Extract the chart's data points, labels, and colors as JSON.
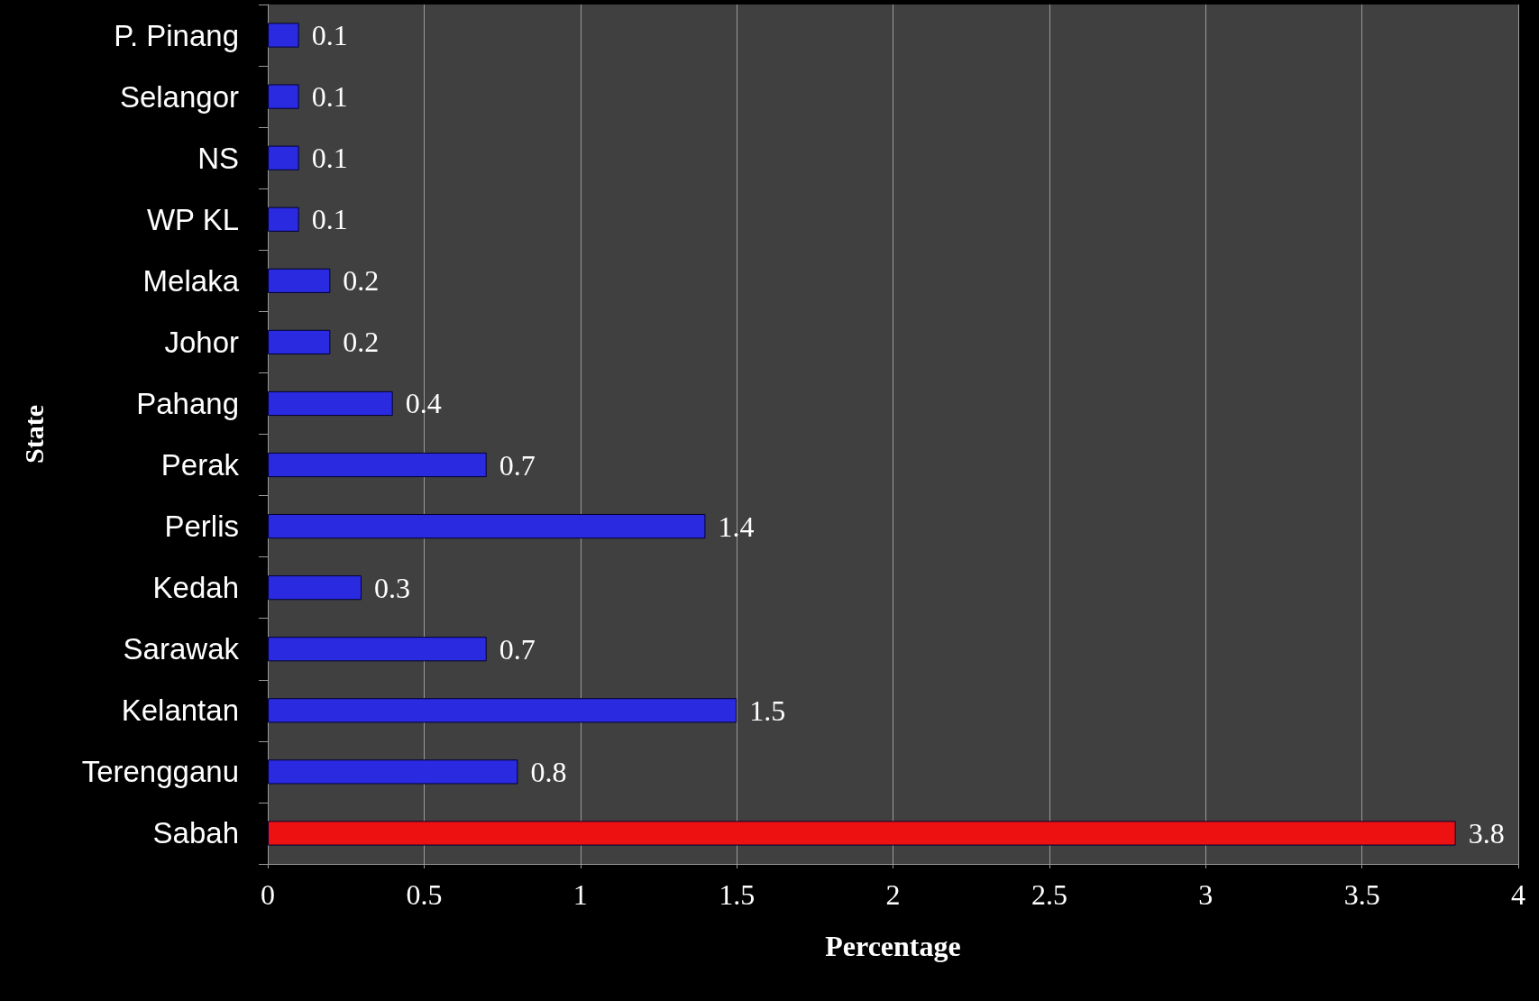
{
  "chart_data": {
    "type": "bar",
    "orientation": "horizontal",
    "categories": [
      "P. Pinang",
      "Selangor",
      "NS",
      "WP KL",
      "Melaka",
      "Johor",
      "Pahang",
      "Perak",
      "Perlis",
      "Kedah",
      "Sarawak",
      "Kelantan",
      "Terengganu",
      "Sabah"
    ],
    "values": [
      0.1,
      0.1,
      0.1,
      0.1,
      0.2,
      0.2,
      0.4,
      0.7,
      1.4,
      0.3,
      0.7,
      1.5,
      0.8,
      3.8
    ],
    "colors": [
      "#2a2ae0",
      "#2a2ae0",
      "#2a2ae0",
      "#2a2ae0",
      "#2a2ae0",
      "#2a2ae0",
      "#2a2ae0",
      "#2a2ae0",
      "#2a2ae0",
      "#2a2ae0",
      "#2a2ae0",
      "#2a2ae0",
      "#2a2ae0",
      "#ee1111"
    ],
    "xlabel": "Percentage",
    "ylabel": "State",
    "xlim": [
      0,
      4
    ],
    "xticks": [
      0,
      0.5,
      1,
      1.5,
      2,
      2.5,
      3,
      3.5,
      4
    ],
    "grid": "x",
    "data_labels": true
  }
}
